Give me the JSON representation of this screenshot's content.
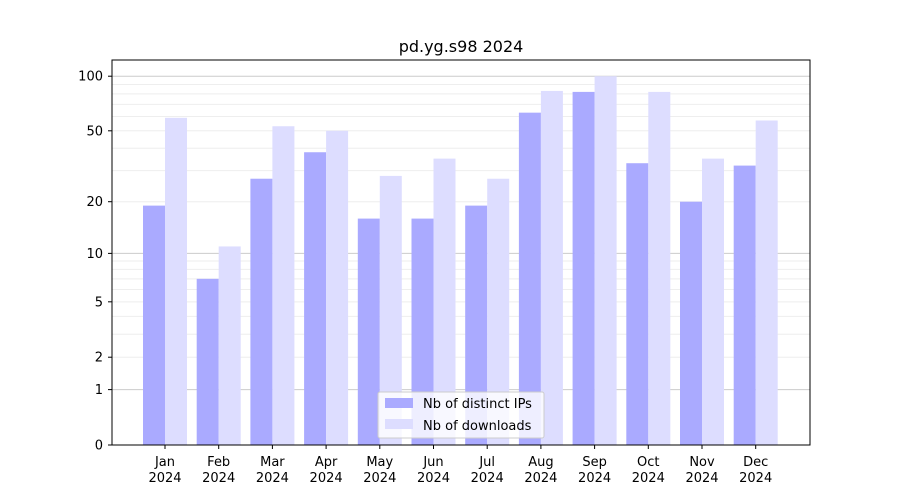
{
  "chart_data": {
    "type": "bar",
    "title": "pd.yg.s98 2024",
    "xlabel": "",
    "ylabel": "",
    "yscale": "log(1+y)",
    "ylim": [
      0,
      120
    ],
    "yticks": [
      0,
      1,
      2,
      5,
      10,
      20,
      50,
      100
    ],
    "grid": true,
    "legend_placement": "bottom-center",
    "categories": [
      "Jan\n2024",
      "Feb\n2024",
      "Mar\n2024",
      "Apr\n2024",
      "May\n2024",
      "Jun\n2024",
      "Jul\n2024",
      "Aug\n2024",
      "Sep\n2024",
      "Oct\n2024",
      "Nov\n2024",
      "Dec\n2024"
    ],
    "series": [
      {
        "name": "Nb of distinct IPs",
        "color": "#aaaaff",
        "values": [
          19,
          7,
          27,
          38,
          16,
          16,
          19,
          63,
          82,
          33,
          20,
          32
        ]
      },
      {
        "name": "Nb of downloads",
        "color": "#ddddff",
        "values": [
          59,
          11,
          53,
          50,
          28,
          35,
          27,
          83,
          100,
          82,
          35,
          57
        ]
      }
    ]
  }
}
